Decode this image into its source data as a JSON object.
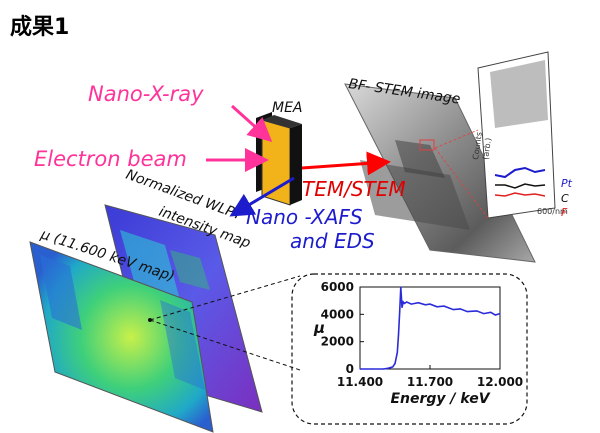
{
  "slide_title": "成果1",
  "labels": {
    "nano_xray": "Nano-X-ray",
    "electron_beam": "Electron beam",
    "mea": "MEA",
    "bf_stem": "BF- STEM image",
    "tem_stem": "TEM/STEM",
    "nano_xafs": "Nano -XAFS",
    "and_eds": "and EDS",
    "wlpt_line1": "Normalized WLPT",
    "wlpt_line2": "intensity map",
    "mu_map": "μ (11.600 keV map)"
  },
  "inset_labels": {
    "pt": "Pt",
    "c": "C",
    "f": "F",
    "ylabel": "Counts",
    "yunit": "(arb.)",
    "xtick": "600/nm"
  },
  "colors": {
    "magenta": "#ff3399",
    "red": "#ff0000",
    "blue": "#1c1ccc",
    "mea_yellow": "#f2b21a",
    "chart_line": "#2b2bd9"
  },
  "chart_data": {
    "type": "line",
    "title": "",
    "xlabel": "Energy / keV",
    "ylabel": "μ",
    "xlim": [
      11.4,
      12.0
    ],
    "ylim": [
      0,
      6000
    ],
    "xticks": [
      "11.400",
      "11.700",
      "12.000"
    ],
    "yticks": [
      "0",
      "2000",
      "4000",
      "6000"
    ],
    "series": [
      {
        "x": [
          11.4,
          11.45,
          11.5,
          11.52,
          11.54,
          11.55,
          11.56,
          11.565,
          11.57,
          11.575,
          11.58,
          11.585,
          11.59,
          11.6,
          11.62,
          11.65,
          11.68,
          11.7,
          11.73,
          11.76,
          11.8,
          11.83,
          11.86,
          11.9,
          11.93,
          11.96,
          11.98,
          12.0
        ],
        "y": [
          0,
          0,
          0,
          50,
          150,
          400,
          1200,
          2500,
          4200,
          6000,
          4500,
          4900,
          4800,
          4900,
          4750,
          4850,
          4700,
          4750,
          4550,
          4600,
          4350,
          4400,
          4200,
          4250,
          4050,
          4150,
          3950,
          4050
        ]
      }
    ]
  }
}
